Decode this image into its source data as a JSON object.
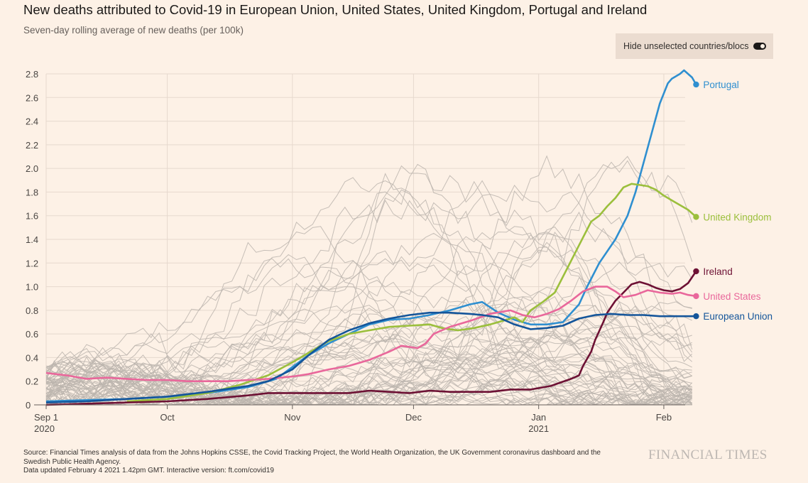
{
  "header": {
    "title": "New deaths attributed to Covid-19 in European Union, United States, United Kingdom, Portugal and Ireland",
    "subtitle": "Seven-day rolling average of new deaths (per 100k)"
  },
  "controls": {
    "toggle_label": "Hide unselected countries/blocs",
    "toggle_on": true
  },
  "footer": {
    "source_line1": "Source: Financial Times analysis of data from the Johns Hopkins CSSE, the Covid Tracking Project, the World Health Organization, the UK Government coronavirus dashboard and the",
    "source_line2": "Swedish Public Health Agency.",
    "updated": "Data updated February 4 2021 1.42pm GMT. Interactive version: ft.com/covid19",
    "brand": "FINANCIAL TIMES"
  },
  "chart_data": {
    "type": "line",
    "title": "New deaths attributed to Covid-19 in European Union, United States, United Kingdom, Portugal and Ireland",
    "ylabel": "Seven-day rolling average of new deaths (per 100k)",
    "ylim": [
      0,
      2.8
    ],
    "yticks": [
      0,
      0.2,
      0.4,
      0.6,
      0.8,
      1.0,
      1.2,
      1.4,
      1.6,
      1.8,
      2.0,
      2.2,
      2.4,
      2.6,
      2.8
    ],
    "ytick_labels": [
      "0",
      "0.2",
      "0.4",
      "0.6",
      "0.8",
      "1.0",
      "1.2",
      "1.4",
      "1.6",
      "1.8",
      "2.0",
      "2.2",
      "2.4",
      "2.6",
      "2.8"
    ],
    "x_unit": "days since 2020-09-01",
    "xlim": [
      0,
      156
    ],
    "xticks": [
      {
        "day": 0,
        "label": "Sep 1",
        "sublabel": "2020"
      },
      {
        "day": 30,
        "label": "Oct",
        "sublabel": ""
      },
      {
        "day": 61,
        "label": "Nov",
        "sublabel": ""
      },
      {
        "day": 91,
        "label": "Dec",
        "sublabel": ""
      },
      {
        "day": 122,
        "label": "Jan",
        "sublabel": "2021"
      },
      {
        "day": 153,
        "label": "Feb",
        "sublabel": ""
      }
    ],
    "series": [
      {
        "name": "Portugal",
        "color": "#2f8fd0",
        "points": [
          [
            0,
            0.03
          ],
          [
            10,
            0.04
          ],
          [
            20,
            0.05
          ],
          [
            30,
            0.07
          ],
          [
            40,
            0.1
          ],
          [
            50,
            0.15
          ],
          [
            57,
            0.22
          ],
          [
            61,
            0.32
          ],
          [
            65,
            0.42
          ],
          [
            70,
            0.52
          ],
          [
            75,
            0.6
          ],
          [
            80,
            0.68
          ],
          [
            85,
            0.72
          ],
          [
            90,
            0.73
          ],
          [
            95,
            0.76
          ],
          [
            100,
            0.8
          ],
          [
            105,
            0.85
          ],
          [
            108,
            0.87
          ],
          [
            112,
            0.78
          ],
          [
            116,
            0.72
          ],
          [
            120,
            0.68
          ],
          [
            124,
            0.68
          ],
          [
            128,
            0.7
          ],
          [
            132,
            0.85
          ],
          [
            134,
            1.0
          ],
          [
            137,
            1.2
          ],
          [
            141,
            1.4
          ],
          [
            144,
            1.6
          ],
          [
            146,
            1.8
          ],
          [
            148,
            2.05
          ],
          [
            150,
            2.3
          ],
          [
            152,
            2.55
          ],
          [
            154,
            2.72
          ],
          [
            155,
            2.76
          ],
          [
            157,
            2.8
          ],
          [
            158,
            2.83
          ],
          [
            160,
            2.77
          ],
          [
            161,
            2.71
          ]
        ]
      },
      {
        "name": "United Kingdom",
        "color": "#9bbf3c",
        "points": [
          [
            20,
            0.03
          ],
          [
            30,
            0.05
          ],
          [
            40,
            0.1
          ],
          [
            48,
            0.17
          ],
          [
            55,
            0.25
          ],
          [
            61,
            0.36
          ],
          [
            65,
            0.44
          ],
          [
            70,
            0.54
          ],
          [
            75,
            0.6
          ],
          [
            80,
            0.63
          ],
          [
            85,
            0.66
          ],
          [
            90,
            0.67
          ],
          [
            95,
            0.68
          ],
          [
            98,
            0.65
          ],
          [
            102,
            0.63
          ],
          [
            106,
            0.65
          ],
          [
            110,
            0.68
          ],
          [
            114,
            0.72
          ],
          [
            116,
            0.74
          ],
          [
            118,
            0.7
          ],
          [
            120,
            0.8
          ],
          [
            123,
            0.87
          ],
          [
            126,
            0.95
          ],
          [
            129,
            1.15
          ],
          [
            132,
            1.35
          ],
          [
            135,
            1.55
          ],
          [
            137,
            1.6
          ],
          [
            139,
            1.68
          ],
          [
            141,
            1.75
          ],
          [
            143,
            1.84
          ],
          [
            145,
            1.87
          ],
          [
            147,
            1.86
          ],
          [
            149,
            1.85
          ],
          [
            151,
            1.82
          ],
          [
            153,
            1.77
          ],
          [
            155,
            1.73
          ],
          [
            157,
            1.69
          ],
          [
            159,
            1.65
          ],
          [
            161,
            1.59
          ]
        ]
      },
      {
        "name": "Ireland",
        "color": "#6d1134",
        "points": [
          [
            0,
            0.0
          ],
          [
            10,
            0.01
          ],
          [
            20,
            0.02
          ],
          [
            30,
            0.03
          ],
          [
            40,
            0.05
          ],
          [
            50,
            0.08
          ],
          [
            55,
            0.1
          ],
          [
            61,
            0.1
          ],
          [
            70,
            0.1
          ],
          [
            75,
            0.1
          ],
          [
            80,
            0.12
          ],
          [
            85,
            0.11
          ],
          [
            90,
            0.1
          ],
          [
            95,
            0.12
          ],
          [
            100,
            0.11
          ],
          [
            105,
            0.11
          ],
          [
            110,
            0.11
          ],
          [
            115,
            0.13
          ],
          [
            120,
            0.13
          ],
          [
            125,
            0.16
          ],
          [
            130,
            0.22
          ],
          [
            132,
            0.25
          ],
          [
            133,
            0.33
          ],
          [
            135,
            0.45
          ],
          [
            136,
            0.55
          ],
          [
            138,
            0.7
          ],
          [
            139,
            0.78
          ],
          [
            141,
            0.88
          ],
          [
            143,
            0.95
          ],
          [
            145,
            1.02
          ],
          [
            147,
            1.04
          ],
          [
            149,
            1.02
          ],
          [
            151,
            0.99
          ],
          [
            153,
            0.97
          ],
          [
            155,
            0.96
          ],
          [
            157,
            0.98
          ],
          [
            159,
            1.03
          ],
          [
            161,
            1.13
          ]
        ]
      },
      {
        "name": "United States",
        "color": "#e9679b",
        "points": [
          [
            0,
            0.27
          ],
          [
            5,
            0.25
          ],
          [
            10,
            0.22
          ],
          [
            15,
            0.23
          ],
          [
            20,
            0.22
          ],
          [
            25,
            0.21
          ],
          [
            30,
            0.21
          ],
          [
            35,
            0.2
          ],
          [
            40,
            0.2
          ],
          [
            45,
            0.2
          ],
          [
            50,
            0.21
          ],
          [
            55,
            0.22
          ],
          [
            61,
            0.24
          ],
          [
            65,
            0.26
          ],
          [
            70,
            0.3
          ],
          [
            75,
            0.33
          ],
          [
            80,
            0.38
          ],
          [
            85,
            0.45
          ],
          [
            88,
            0.5
          ],
          [
            92,
            0.48
          ],
          [
            94,
            0.52
          ],
          [
            96,
            0.6
          ],
          [
            100,
            0.66
          ],
          [
            105,
            0.71
          ],
          [
            110,
            0.77
          ],
          [
            115,
            0.8
          ],
          [
            118,
            0.76
          ],
          [
            121,
            0.74
          ],
          [
            124,
            0.77
          ],
          [
            127,
            0.81
          ],
          [
            130,
            0.88
          ],
          [
            133,
            0.96
          ],
          [
            136,
            1.0
          ],
          [
            139,
            1.0
          ],
          [
            141,
            0.96
          ],
          [
            143,
            0.91
          ],
          [
            146,
            0.93
          ],
          [
            149,
            0.97
          ],
          [
            152,
            0.95
          ],
          [
            155,
            0.94
          ],
          [
            157,
            0.95
          ],
          [
            159,
            0.93
          ],
          [
            161,
            0.92
          ]
        ]
      },
      {
        "name": "European Union",
        "color": "#14559a",
        "points": [
          [
            0,
            0.02
          ],
          [
            10,
            0.03
          ],
          [
            20,
            0.05
          ],
          [
            30,
            0.07
          ],
          [
            40,
            0.11
          ],
          [
            50,
            0.16
          ],
          [
            55,
            0.2
          ],
          [
            61,
            0.3
          ],
          [
            65,
            0.42
          ],
          [
            70,
            0.55
          ],
          [
            75,
            0.63
          ],
          [
            80,
            0.69
          ],
          [
            85,
            0.73
          ],
          [
            90,
            0.76
          ],
          [
            95,
            0.78
          ],
          [
            100,
            0.78
          ],
          [
            105,
            0.77
          ],
          [
            108,
            0.76
          ],
          [
            112,
            0.74
          ],
          [
            116,
            0.68
          ],
          [
            120,
            0.64
          ],
          [
            124,
            0.65
          ],
          [
            128,
            0.67
          ],
          [
            132,
            0.73
          ],
          [
            136,
            0.76
          ],
          [
            140,
            0.77
          ],
          [
            144,
            0.76
          ],
          [
            148,
            0.76
          ],
          [
            152,
            0.75
          ],
          [
            156,
            0.75
          ],
          [
            159,
            0.75
          ],
          [
            161,
            0.75
          ]
        ]
      }
    ],
    "background_series_count": 60,
    "background_color": "#bcb5ae"
  }
}
